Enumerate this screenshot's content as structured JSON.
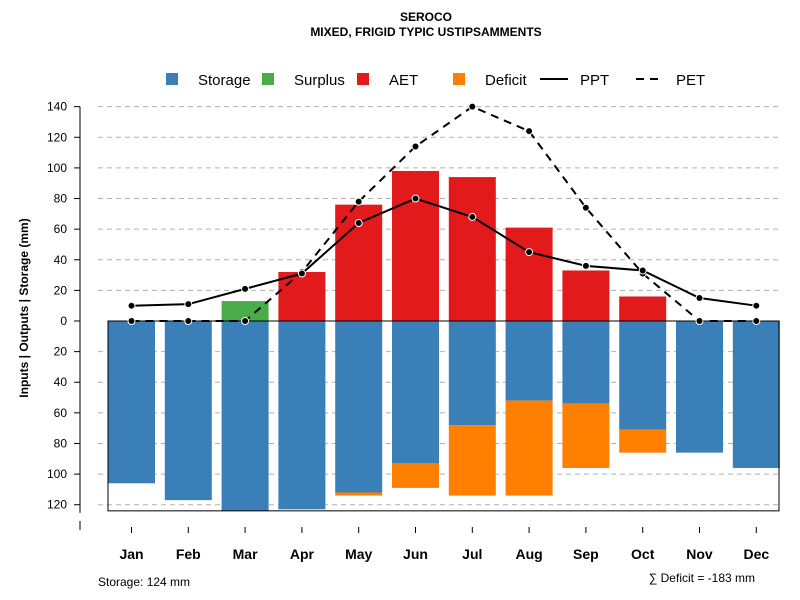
{
  "chart_data": {
    "type": "bar",
    "title": "SEROCO",
    "subtitle": "MIXED, FRIGID TYPIC USTIPSAMMENTS",
    "ylabel": "Inputs | Outputs | Storage     (mm)",
    "ylim": [
      -124,
      140
    ],
    "y_ticks": [
      140,
      120,
      100,
      80,
      60,
      40,
      20,
      0,
      -20,
      -40,
      -60,
      -80,
      -100,
      -120
    ],
    "grid": true,
    "categories": [
      "Jan",
      "Feb",
      "Mar",
      "Apr",
      "May",
      "Jun",
      "Jul",
      "Aug",
      "Sep",
      "Oct",
      "Nov",
      "Dec"
    ],
    "legend": [
      {
        "name": "Storage",
        "kind": "box",
        "color": "#3A7FB8"
      },
      {
        "name": "Surplus",
        "kind": "box",
        "color": "#4AAC48"
      },
      {
        "name": "AET",
        "kind": "box",
        "color": "#E31A1C"
      },
      {
        "name": "Deficit",
        "kind": "box",
        "color": "#FF7F00"
      },
      {
        "name": "PPT",
        "kind": "solid",
        "color": "#000000"
      },
      {
        "name": "PET",
        "kind": "dashed",
        "color": "#000000"
      }
    ],
    "series": [
      {
        "name": "Storage",
        "values": [
          106,
          117,
          124,
          123,
          112,
          93,
          68,
          52,
          54,
          71,
          86,
          96
        ]
      },
      {
        "name": "Surplus",
        "values": [
          0,
          0,
          13,
          0,
          0,
          0,
          0,
          0,
          0,
          0,
          0,
          0
        ]
      },
      {
        "name": "AET",
        "values": [
          0,
          0,
          0,
          32,
          76,
          98,
          94,
          61,
          33,
          16,
          0,
          0
        ]
      },
      {
        "name": "Deficit",
        "values": [
          0,
          0,
          0,
          0,
          2,
          16,
          46,
          62,
          42,
          15,
          0,
          0
        ]
      },
      {
        "name": "PPT",
        "values": [
          10,
          11,
          21,
          31,
          64,
          80,
          68,
          45,
          36,
          33,
          15,
          10
        ]
      },
      {
        "name": "PET",
        "values": [
          0,
          0,
          0,
          32,
          78,
          114,
          140,
          124,
          74,
          31,
          0,
          0
        ]
      }
    ],
    "storage_note": "Storage: 124 mm",
    "deficit_note": "∑ Deficit = -183 mm"
  }
}
